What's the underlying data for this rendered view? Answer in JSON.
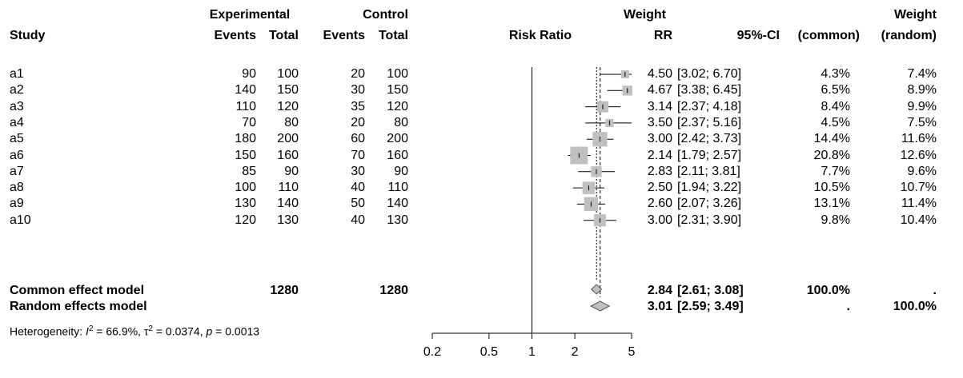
{
  "headers": {
    "study": "Study",
    "experimental": "Experimental",
    "control": "Control",
    "events": "Events",
    "total": "Total",
    "risk_ratio": "Risk Ratio",
    "rr": "RR",
    "ci": "95%-CI",
    "weight": "Weight",
    "weight_common": "(common)",
    "weight_random": "(random)"
  },
  "studies": [
    {
      "name": "a1",
      "e_events": "90",
      "e_total": "100",
      "c_events": "20",
      "c_total": "100",
      "rr": "4.50",
      "ci": "[3.02; 6.70]",
      "w_common": "4.3%",
      "w_random": "7.4%"
    },
    {
      "name": "a2",
      "e_events": "140",
      "e_total": "150",
      "c_events": "30",
      "c_total": "150",
      "rr": "4.67",
      "ci": "[3.38; 6.45]",
      "w_common": "6.5%",
      "w_random": "8.9%"
    },
    {
      "name": "a3",
      "e_events": "110",
      "e_total": "120",
      "c_events": "35",
      "c_total": "120",
      "rr": "3.14",
      "ci": "[2.37; 4.18]",
      "w_common": "8.4%",
      "w_random": "9.9%"
    },
    {
      "name": "a4",
      "e_events": "70",
      "e_total": "80",
      "c_events": "20",
      "c_total": "80",
      "rr": "3.50",
      "ci": "[2.37; 5.16]",
      "w_common": "4.5%",
      "w_random": "7.5%"
    },
    {
      "name": "a5",
      "e_events": "180",
      "e_total": "200",
      "c_events": "60",
      "c_total": "200",
      "rr": "3.00",
      "ci": "[2.42; 3.73]",
      "w_common": "14.4%",
      "w_random": "11.6%"
    },
    {
      "name": "a6",
      "e_events": "150",
      "e_total": "160",
      "c_events": "70",
      "c_total": "160",
      "rr": "2.14",
      "ci": "[1.79; 2.57]",
      "w_common": "20.8%",
      "w_random": "12.6%"
    },
    {
      "name": "a7",
      "e_events": "85",
      "e_total": "90",
      "c_events": "30",
      "c_total": "90",
      "rr": "2.83",
      "ci": "[2.11; 3.81]",
      "w_common": "7.7%",
      "w_random": "9.6%"
    },
    {
      "name": "a8",
      "e_events": "100",
      "e_total": "110",
      "c_events": "40",
      "c_total": "110",
      "rr": "2.50",
      "ci": "[1.94; 3.22]",
      "w_common": "10.5%",
      "w_random": "10.7%"
    },
    {
      "name": "a9",
      "e_events": "130",
      "e_total": "140",
      "c_events": "50",
      "c_total": "140",
      "rr": "2.60",
      "ci": "[2.07; 3.26]",
      "w_common": "13.1%",
      "w_random": "11.4%"
    },
    {
      "name": "a10",
      "e_events": "120",
      "e_total": "130",
      "c_events": "40",
      "c_total": "130",
      "rr": "3.00",
      "ci": "[2.31; 3.90]",
      "w_common": "9.8%",
      "w_random": "10.4%"
    }
  ],
  "summary": {
    "common": {
      "label": "Common effect model",
      "e_total": "1280",
      "c_total": "1280",
      "rr": "2.84",
      "ci": "[2.61; 3.08]",
      "w_common": "100.0%",
      "w_random": "."
    },
    "random": {
      "label": "Random effects model",
      "rr": "3.01",
      "ci": "[2.59; 3.49]",
      "w_common": ".",
      "w_random": "100.0%"
    }
  },
  "heterogeneity": {
    "prefix": "Heterogeneity: ",
    "i2_label": "I",
    "i2_sup": "2",
    "i2_value": " = 66.9%, ",
    "tau_label": "τ",
    "tau_sup": "2",
    "tau_value": " = 0.0374, ",
    "p_label": "p",
    "p_value": " = 0.0013"
  },
  "chart_data": {
    "type": "forest",
    "scale": "log",
    "xlim": [
      0.2,
      5
    ],
    "ticks": [
      0.2,
      0.5,
      1,
      2,
      5
    ],
    "tick_labels": [
      "0.2",
      "0.5",
      "1",
      "2",
      "5"
    ],
    "reference_line": 1,
    "common_line": 2.84,
    "random_line": 3.01,
    "studies": [
      {
        "rr": 4.5,
        "lo": 3.02,
        "hi": 6.7,
        "weight": 4.3
      },
      {
        "rr": 4.67,
        "lo": 3.38,
        "hi": 6.45,
        "weight": 6.5
      },
      {
        "rr": 3.14,
        "lo": 2.37,
        "hi": 4.18,
        "weight": 8.4
      },
      {
        "rr": 3.5,
        "lo": 2.37,
        "hi": 5.16,
        "weight": 4.5
      },
      {
        "rr": 3.0,
        "lo": 2.42,
        "hi": 3.73,
        "weight": 14.4
      },
      {
        "rr": 2.14,
        "lo": 1.79,
        "hi": 2.57,
        "weight": 20.8
      },
      {
        "rr": 2.83,
        "lo": 2.11,
        "hi": 3.81,
        "weight": 7.7
      },
      {
        "rr": 2.5,
        "lo": 1.94,
        "hi": 3.22,
        "weight": 10.5
      },
      {
        "rr": 2.6,
        "lo": 2.07,
        "hi": 3.26,
        "weight": 13.1
      },
      {
        "rr": 3.0,
        "lo": 2.31,
        "hi": 3.9,
        "weight": 9.8
      }
    ],
    "common_diamond": {
      "rr": 2.84,
      "lo": 2.61,
      "hi": 3.08
    },
    "random_diamond": {
      "rr": 3.01,
      "lo": 2.59,
      "hi": 3.49
    },
    "colors": {
      "square": "#c0c0c0",
      "diamond": "#c0c0c0",
      "line": "#000000"
    }
  }
}
